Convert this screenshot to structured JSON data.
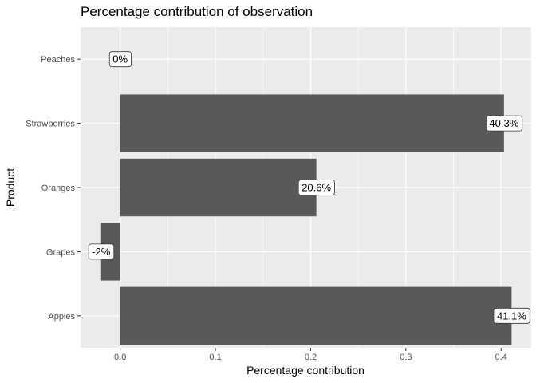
{
  "chart_data": {
    "type": "bar",
    "orientation": "horizontal",
    "title": "Percentage contribution of observation",
    "xlabel": "Percentage contribution",
    "ylabel": "Product",
    "categories": [
      "Apples",
      "Grapes",
      "Oranges",
      "Strawberries",
      "Peaches"
    ],
    "values": [
      0.411,
      -0.02,
      0.206,
      0.403,
      0.0
    ],
    "data_labels": [
      "41.1%",
      "-2%",
      "20.6%",
      "40.3%",
      "0%"
    ],
    "x_ticks": [
      0.0,
      0.1,
      0.2,
      0.3,
      0.4
    ],
    "x_tick_labels": [
      "0.0",
      "0.1",
      "0.2",
      "0.3",
      "0.4"
    ],
    "xlim": [
      -0.0416,
      0.4316
    ],
    "grid": true,
    "legend": "none",
    "colors": {
      "panel_background": "#ebebeb",
      "grid_major": "#ffffff",
      "bar_fill": "#595959",
      "label_background": "#ffffff",
      "label_border": "#333333"
    }
  }
}
